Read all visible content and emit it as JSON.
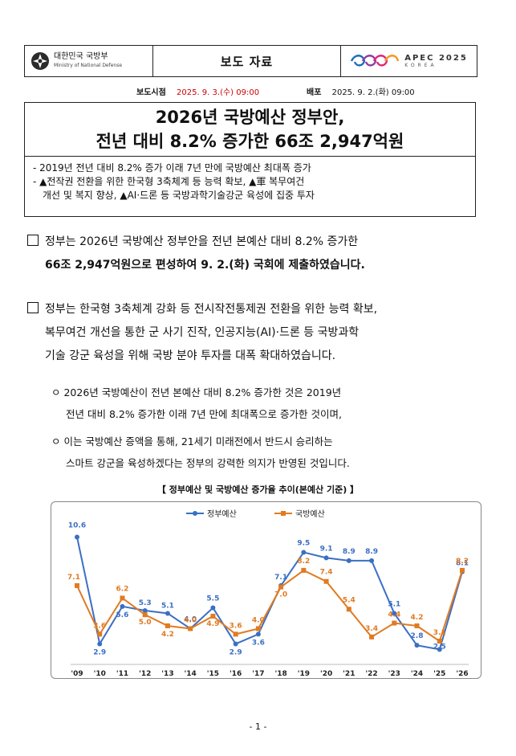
{
  "header": {
    "ministry_name": "대한민국 국방부",
    "ministry_sub": "Ministry of National Defense",
    "doc_type": "보도 자료",
    "apec_logo": "APEC 2025",
    "apec_sub": "KOREA"
  },
  "meta": {
    "release_label": "보도시점",
    "release_value": "2025. 9. 3.(수) 09:00",
    "dist_label": "배포",
    "dist_value": "2025. 9. 2.(화) 09:00"
  },
  "title": {
    "line1": "2026년 국방예산 정부안,",
    "line2": "전년 대비 8.2% 증가한 66조 2,947억원"
  },
  "summary": {
    "line1": "- 2019년 전년 대비 8.2% 증가 이래 7년 만에 국방예산 최대폭 증가",
    "line2": "- ▲전작권 전환을 위한 한국형 3축체계 등 능력 확보, ▲軍 복무여건",
    "line3": "개선 및 복지 향상, ▲AI·드론 등 국방과학기술강군 육성에 집중 투자"
  },
  "para1": {
    "line1": "정부는 2026년 국방예산 정부안을 전년 본예산 대비 8.2% 증가한",
    "line2": "66조 2,947억원으로 편성하여 9. 2.(화) 국회에 제출하였습니다."
  },
  "para2": {
    "line1": "정부는 한국형 3축체계 강화 등 전시작전통제권 전환을 위한 능력 확보,",
    "line2": "복무여건 개선을 통한 군 사기 진작, 인공지능(AI)·드론 등 국방과학",
    "line3": "기술 강군 육성을 위해 국방 분야 투자를 대폭 확대하였습니다."
  },
  "sub1": {
    "line1": "ㅇ 2026년 국방예산이 전년 본예산 대비 8.2% 증가한 것은 2019년",
    "line2": "전년 대비 8.2% 증가한 이래 7년 만에 최대폭으로 증가한 것이며,"
  },
  "sub2": {
    "line1": "ㅇ 이는 국방예산 증액을 통해, 21세기 미래전에서 반드시 승리하는",
    "line2": "스마트 강군을 육성하겠다는 정부의 강력한 의지가 반영된 것입니다."
  },
  "chart_title": "【 정부예산 및 국방예산 증가율 추이(본예산 기준) 】",
  "chart_data": {
    "type": "line",
    "x": [
      "'09",
      "'10",
      "'11",
      "'12",
      "'13",
      "'14",
      "'15",
      "'16",
      "'17",
      "'18",
      "'19",
      "'20",
      "'21",
      "'22",
      "'23",
      "'24",
      "'25",
      "'26"
    ],
    "series": [
      {
        "name": "정부예산",
        "color": "#3a6fc4",
        "values": [
          10.6,
          2.9,
          5.6,
          5.3,
          5.1,
          4.0,
          5.5,
          2.9,
          3.6,
          7.1,
          9.5,
          9.1,
          8.9,
          8.9,
          5.1,
          2.8,
          2.5,
          8.1
        ],
        "labels": [
          "10.6",
          "2.9",
          "5.6",
          "5.3",
          "5.1",
          "4.0",
          "5.5",
          "2.9",
          "3.6",
          "7.1",
          "9.5",
          "9.1",
          "8.9",
          "8.9",
          "5.1",
          "2.8",
          "2.5",
          "8.1"
        ]
      },
      {
        "name": "국방예산",
        "color": "#e07b22",
        "values": [
          7.1,
          3.6,
          6.2,
          5.0,
          4.2,
          4.0,
          4.9,
          3.6,
          4.0,
          7.0,
          8.2,
          7.4,
          5.4,
          3.4,
          4.4,
          4.2,
          3.1,
          8.2
        ],
        "labels": [
          "7.1",
          "3.6",
          "6.2",
          "5.0",
          "4.2",
          "4.0",
          "4.9",
          "3.6",
          "4.0",
          "7.0",
          "8.2",
          "7.4",
          "5.4",
          "3.4",
          "4.4",
          "4.2",
          "3.1",
          "8.2"
        ]
      }
    ],
    "legend": "top-center",
    "grid": false
  },
  "page_number": "- 1 -"
}
